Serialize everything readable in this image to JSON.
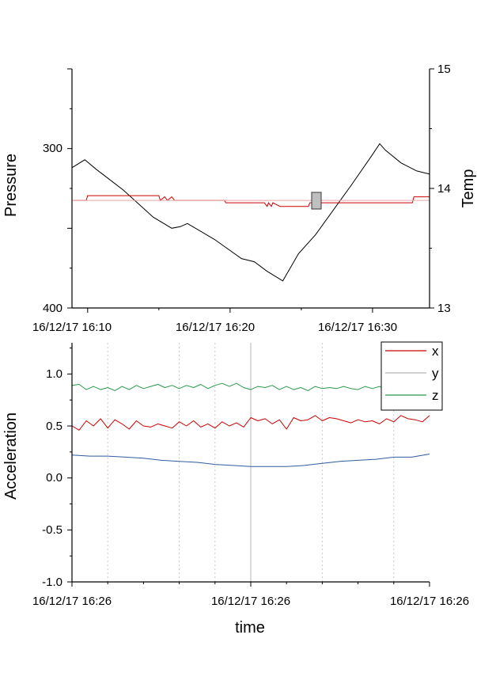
{
  "chart_data": [
    {
      "type": "line",
      "title": "",
      "xlabel": "",
      "ylabel": "Pressure",
      "y2label": "Temp",
      "x_ticks": [
        "16/12/17 16:10",
        "16/12/17 16:20",
        "16/12/17 16:30"
      ],
      "x_range_min": [
        8.9,
        34.0
      ],
      "y_ticks": [
        300,
        400
      ],
      "y_range": [
        250,
        400
      ],
      "y_inverted": true,
      "y2_ticks": [
        13,
        14,
        15
      ],
      "y2_range": [
        13,
        15
      ],
      "grid": false,
      "series": [
        {
          "axis": "left",
          "color": "#000000",
          "x": [
            8.9,
            9.8,
            10.6,
            12.5,
            14.6,
            15.9,
            16.5,
            17.0,
            18.9,
            20.8,
            21.7,
            22.6,
            23.7,
            24.8,
            26.0,
            28.5,
            29.9,
            30.5,
            30.9,
            32.0,
            33.1,
            34.0
          ],
          "y": [
            312,
            307,
            313,
            326,
            343,
            350,
            349,
            347,
            357,
            369,
            371,
            377,
            383,
            366,
            354,
            323,
            305,
            297,
            301,
            309,
            314,
            316
          ]
        },
        {
          "axis": "right",
          "color": "#cc0000",
          "x": [
            9.0,
            9.9,
            10.0,
            13.5,
            15.0,
            15.1,
            15.4,
            15.6,
            15.9,
            16.1,
            16.3,
            19.6,
            19.7,
            22.4,
            22.6,
            22.7,
            22.9,
            23.0,
            23.5,
            25.5,
            25.6,
            26.4,
            32.8,
            32.9,
            33.2,
            34.0
          ],
          "y": [
            13.9,
            13.9,
            13.94,
            13.94,
            13.94,
            13.9,
            13.93,
            13.9,
            13.93,
            13.9,
            13.9,
            13.9,
            13.88,
            13.88,
            13.85,
            13.88,
            13.85,
            13.88,
            13.85,
            13.85,
            13.88,
            13.88,
            13.88,
            13.93,
            13.93,
            13.93
          ]
        },
        {
          "axis": "right",
          "color": "#e8a6a6",
          "x": [
            8.9,
            34.0
          ],
          "y": [
            13.9,
            13.9
          ]
        }
      ]
    },
    {
      "type": "line",
      "title": "",
      "xlabel": "time",
      "ylabel": "Acceleration",
      "x_ticks": [
        "16/12/17 16:26",
        "16/12/17 16:26",
        "16/12/17 16:26"
      ],
      "y_ticks": [
        "-1.0",
        "-0.5",
        "0.0",
        "0.5",
        "1.0"
      ],
      "y_range": [
        -1.0,
        1.3
      ],
      "legend_position": "top-right",
      "grid": true,
      "series": [
        {
          "name": "x",
          "color": "#cc0000",
          "x": [
            0,
            0.02,
            0.04,
            0.06,
            0.08,
            0.1,
            0.12,
            0.14,
            0.16,
            0.18,
            0.2,
            0.22,
            0.24,
            0.26,
            0.28,
            0.3,
            0.32,
            0.34,
            0.36,
            0.38,
            0.4,
            0.42,
            0.44,
            0.46,
            0.48,
            0.5,
            0.52,
            0.54,
            0.56,
            0.58,
            0.6,
            0.62,
            0.64,
            0.66,
            0.68,
            0.7,
            0.72,
            0.74,
            0.76,
            0.78,
            0.8,
            0.82,
            0.84,
            0.86,
            0.88,
            0.9,
            0.92,
            0.94,
            0.96,
            0.98,
            1.0
          ],
          "y": [
            0.5,
            0.46,
            0.55,
            0.5,
            0.57,
            0.48,
            0.56,
            0.52,
            0.47,
            0.55,
            0.5,
            0.49,
            0.52,
            0.5,
            0.48,
            0.54,
            0.5,
            0.55,
            0.49,
            0.52,
            0.48,
            0.54,
            0.5,
            0.53,
            0.49,
            0.58,
            0.55,
            0.57,
            0.52,
            0.56,
            0.47,
            0.58,
            0.55,
            0.56,
            0.6,
            0.55,
            0.58,
            0.57,
            0.55,
            0.53,
            0.56,
            0.54,
            0.55,
            0.52,
            0.57,
            0.54,
            0.6,
            0.57,
            0.56,
            0.54,
            0.6
          ]
        },
        {
          "name": "y",
          "color": "#b5b5b5",
          "x": [
            0,
            1
          ],
          "y": [
            0,
            0
          ]
        },
        {
          "name": "z",
          "color": "#2a9a4a",
          "x": [
            0,
            0.02,
            0.04,
            0.06,
            0.08,
            0.1,
            0.12,
            0.14,
            0.16,
            0.18,
            0.2,
            0.22,
            0.24,
            0.26,
            0.28,
            0.3,
            0.32,
            0.34,
            0.36,
            0.38,
            0.4,
            0.42,
            0.44,
            0.46,
            0.48,
            0.5,
            0.52,
            0.54,
            0.56,
            0.58,
            0.6,
            0.62,
            0.64,
            0.66,
            0.68,
            0.7,
            0.72,
            0.74,
            0.76,
            0.78,
            0.8,
            0.82,
            0.84,
            0.86,
            0.88,
            0.9,
            0.92,
            0.94,
            0.96,
            0.98,
            1.0
          ],
          "y": [
            0.89,
            0.9,
            0.85,
            0.88,
            0.85,
            0.87,
            0.84,
            0.88,
            0.85,
            0.89,
            0.86,
            0.88,
            0.9,
            0.87,
            0.89,
            0.86,
            0.89,
            0.87,
            0.9,
            0.86,
            0.89,
            0.91,
            0.88,
            0.91,
            0.87,
            0.85,
            0.88,
            0.87,
            0.89,
            0.85,
            0.88,
            0.85,
            0.87,
            0.84,
            0.88,
            0.86,
            0.87,
            0.86,
            0.88,
            0.86,
            0.85,
            0.88,
            0.86,
            0.88,
            0.85,
            0.89,
            0.86,
            0.87,
            0.86,
            0.85,
            0.87
          ]
        },
        {
          "name": "",
          "color": "#2f5c9e",
          "x": [
            0,
            0.05,
            0.1,
            0.15,
            0.2,
            0.25,
            0.3,
            0.35,
            0.4,
            0.45,
            0.5,
            0.55,
            0.6,
            0.65,
            0.7,
            0.75,
            0.8,
            0.85,
            0.9,
            0.95,
            1.0
          ],
          "y": [
            0.22,
            0.21,
            0.21,
            0.2,
            0.19,
            0.17,
            0.16,
            0.15,
            0.13,
            0.12,
            0.11,
            0.11,
            0.11,
            0.12,
            0.14,
            0.16,
            0.17,
            0.18,
            0.2,
            0.2,
            0.23
          ]
        }
      ]
    }
  ]
}
